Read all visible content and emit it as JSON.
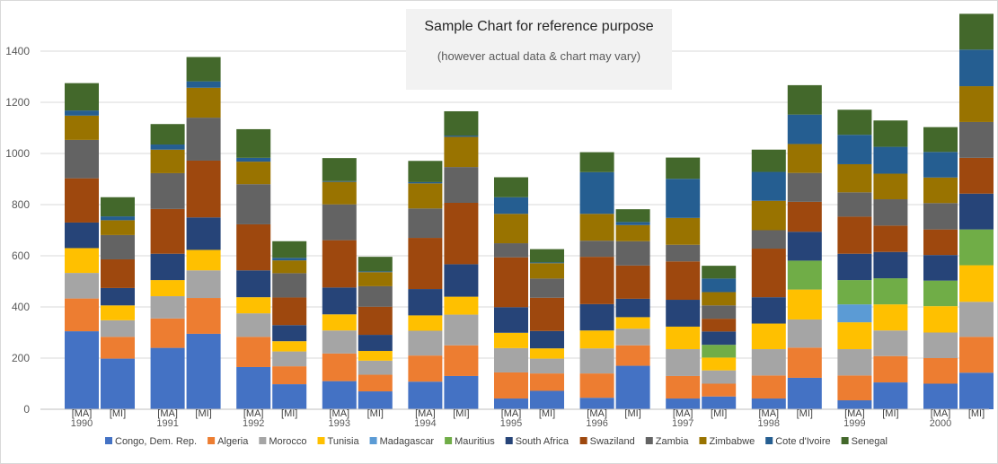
{
  "chart_data": {
    "type": "bar",
    "stacked": true,
    "title": "Sample Chart for reference purpose",
    "subtitle": "(however actual data & chart may vary)",
    "ylim": [
      0,
      1600
    ],
    "yticks": [
      0,
      200,
      400,
      600,
      800,
      1000,
      1200,
      1400
    ],
    "grid": true,
    "legend_position": "bottom",
    "categories": [
      {
        "year": "1990",
        "ma": "[MA]",
        "mi": "[MI]"
      },
      {
        "year": "1991",
        "ma": "[MA]",
        "mi": "[MI]"
      },
      {
        "year": "1992",
        "ma": "[MA]",
        "mi": "[MI]"
      },
      {
        "year": "1993",
        "ma": "[MA]",
        "mi": "[MI]"
      },
      {
        "year": "1994",
        "ma": "[MA]",
        "mi": "[MI]"
      },
      {
        "year": "1995",
        "ma": "[MA]",
        "mi": "[MI]"
      },
      {
        "year": "1996",
        "ma": "[MA]",
        "mi": "[MI]"
      },
      {
        "year": "1997",
        "ma": "[MA]",
        "mi": "[MI]"
      },
      {
        "year": "1998",
        "ma": "[MA]",
        "mi": "[MI]"
      },
      {
        "year": "1999",
        "ma": "[MA]",
        "mi": "[MI]"
      },
      {
        "year": "2000",
        "ma": "[MA]",
        "mi": "[MI]"
      }
    ],
    "series": [
      {
        "name": "Congo, Dem. Rep.",
        "color": "#4472C4",
        "ma": [
          305,
          240,
          165,
          110,
          108,
          42,
          45,
          42,
          42,
          35,
          100
        ],
        "mi": [
          198,
          295,
          98,
          70,
          130,
          72,
          170,
          50,
          123,
          105,
          143
        ]
      },
      {
        "name": "Algeria",
        "color": "#ED7D31",
        "ma": [
          128,
          115,
          118,
          108,
          102,
          102,
          95,
          88,
          90,
          97,
          100
        ],
        "mi": [
          85,
          140,
          70,
          65,
          120,
          68,
          80,
          50,
          118,
          103,
          140
        ]
      },
      {
        "name": "Morocco",
        "color": "#A5A5A5",
        "ma": [
          100,
          87,
          92,
          90,
          97,
          95,
          98,
          105,
          103,
          103,
          100
        ],
        "mi": [
          65,
          108,
          58,
          55,
          120,
          58,
          65,
          52,
          110,
          100,
          137
        ]
      },
      {
        "name": "Tunisia",
        "color": "#FFC000",
        "ma": [
          97,
          63,
          63,
          63,
          60,
          60,
          70,
          88,
          100,
          105,
          103
        ],
        "mi": [
          58,
          80,
          40,
          38,
          70,
          40,
          45,
          50,
          117,
          102,
          143
        ]
      },
      {
        "name": "Madagascar",
        "color": "#5B9BD5",
        "ma": [
          0,
          0,
          0,
          0,
          0,
          0,
          0,
          0,
          0,
          70,
          0
        ],
        "mi": [
          0,
          0,
          0,
          0,
          0,
          0,
          0,
          0,
          0,
          0,
          0
        ]
      },
      {
        "name": "Mauritius",
        "color": "#70AD47",
        "ma": [
          0,
          0,
          0,
          0,
          0,
          0,
          0,
          0,
          0,
          95,
          100
        ],
        "mi": [
          0,
          0,
          0,
          0,
          0,
          0,
          0,
          50,
          113,
          102,
          140
        ]
      },
      {
        "name": "South Africa",
        "color": "#264478",
        "ma": [
          100,
          103,
          105,
          105,
          103,
          100,
          103,
          105,
          103,
          103,
          100
        ],
        "mi": [
          68,
          127,
          63,
          63,
          127,
          68,
          72,
          52,
          113,
          103,
          140
        ]
      },
      {
        "name": "Swaziland",
        "color": "#9E480E",
        "ma": [
          173,
          175,
          180,
          185,
          200,
          195,
          185,
          150,
          190,
          145,
          100
        ],
        "mi": [
          112,
          222,
          108,
          110,
          240,
          130,
          130,
          50,
          117,
          103,
          140
        ]
      },
      {
        "name": "Zambia",
        "color": "#636363",
        "ma": [
          150,
          140,
          157,
          140,
          115,
          55,
          63,
          65,
          72,
          95,
          103
        ],
        "mi": [
          95,
          168,
          95,
          80,
          140,
          75,
          95,
          52,
          113,
          103,
          140
        ]
      },
      {
        "name": "Zimbabwe",
        "color": "#997300",
        "ma": [
          95,
          92,
          88,
          88,
          98,
          115,
          105,
          105,
          115,
          110,
          100
        ],
        "mi": [
          58,
          117,
          50,
          55,
          118,
          60,
          63,
          52,
          113,
          100,
          140
        ]
      },
      {
        "name": "Cote d'Ivoire",
        "color": "#255E91",
        "ma": [
          20,
          20,
          15,
          3,
          5,
          65,
          163,
          153,
          113,
          115,
          100
        ],
        "mi": [
          15,
          25,
          10,
          3,
          5,
          3,
          12,
          53,
          115,
          105,
          143
        ]
      },
      {
        "name": "Senegal",
        "color": "#43682B",
        "ma": [
          107,
          80,
          112,
          90,
          83,
          78,
          78,
          83,
          87,
          98,
          97
        ],
        "mi": [
          75,
          95,
          65,
          57,
          95,
          52,
          50,
          50,
          115,
          103,
          140
        ]
      }
    ]
  }
}
